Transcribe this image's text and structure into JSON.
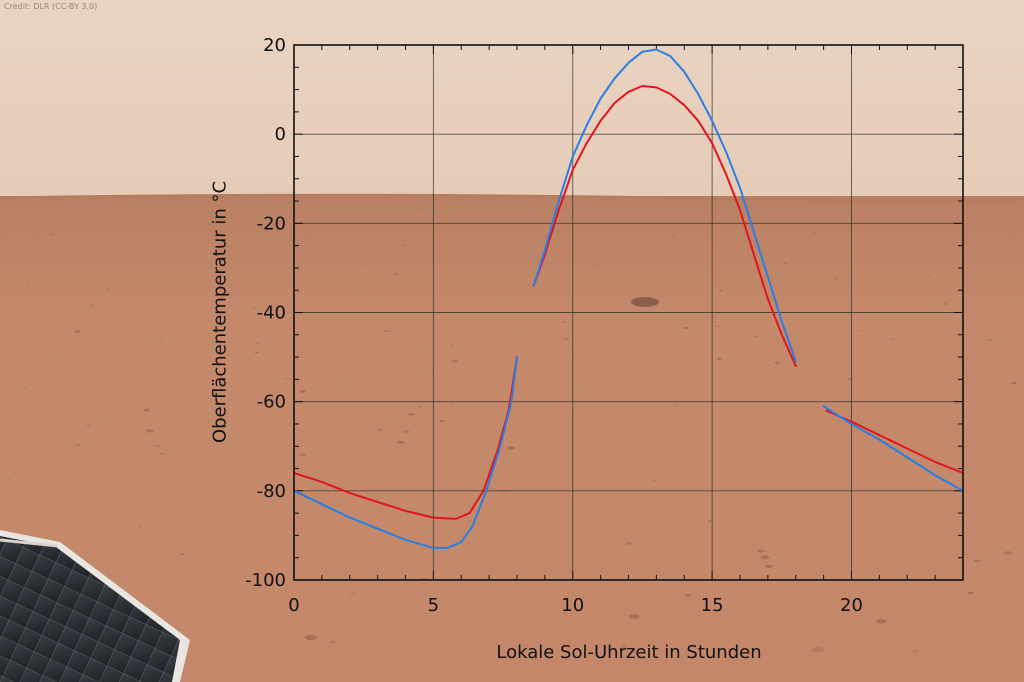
{
  "credit": "Credit: DLR (CC-BY 3.0)",
  "colors": {
    "sky": "#ead3c1",
    "ground": "#c08262",
    "red": "#e0161e",
    "blue": "#2a7ee6"
  },
  "chart_data": {
    "type": "line",
    "xlabel": "Lokale Sol-Uhrzeit in Stunden",
    "ylabel": "Oberflächentemperatur in °C",
    "xlim": [
      0,
      24
    ],
    "ylim": [
      -100,
      20
    ],
    "x_ticks": [
      0,
      5,
      10,
      15,
      20
    ],
    "y_ticks": [
      20,
      0,
      -20,
      -40,
      -60,
      -80,
      -100
    ],
    "grid": true,
    "series": [
      {
        "color": "#e0161e",
        "segments": [
          [
            [
              0,
              -76
            ],
            [
              1,
              -78
            ],
            [
              2,
              -80.5
            ],
            [
              3,
              -82.5
            ],
            [
              4,
              -84.5
            ],
            [
              5,
              -86
            ],
            [
              5.8,
              -86.3
            ],
            [
              6.3,
              -85
            ],
            [
              6.8,
              -80
            ],
            [
              7.3,
              -71
            ],
            [
              7.7,
              -62
            ],
            [
              8.0,
              -50
            ]
          ],
          [
            [
              8.6,
              -34
            ],
            [
              9.0,
              -27
            ],
            [
              9.5,
              -17
            ],
            [
              10,
              -8
            ],
            [
              10.5,
              -2
            ],
            [
              11,
              3
            ],
            [
              11.5,
              7
            ],
            [
              12,
              9.5
            ],
            [
              12.5,
              10.8
            ],
            [
              13,
              10.5
            ],
            [
              13.5,
              9
            ],
            [
              14,
              6.5
            ],
            [
              14.5,
              3
            ],
            [
              15,
              -2
            ],
            [
              15.5,
              -9
            ],
            [
              16,
              -17
            ],
            [
              16.5,
              -27
            ],
            [
              17,
              -37
            ],
            [
              17.5,
              -45
            ],
            [
              18,
              -52
            ]
          ],
          [
            [
              19.1,
              -62
            ],
            [
              20,
              -64.5
            ],
            [
              21,
              -67.5
            ],
            [
              22,
              -70.5
            ],
            [
              23,
              -73.5
            ],
            [
              24,
              -76
            ]
          ]
        ]
      },
      {
        "color": "#2a7ee6",
        "segments": [
          [
            [
              0,
              -80
            ],
            [
              1,
              -83
            ],
            [
              2,
              -86
            ],
            [
              3,
              -88.5
            ],
            [
              4,
              -91
            ],
            [
              5,
              -92.8
            ],
            [
              5.5,
              -92.8
            ],
            [
              6.0,
              -91.5
            ],
            [
              6.4,
              -88
            ],
            [
              6.9,
              -80
            ],
            [
              7.4,
              -70
            ],
            [
              7.8,
              -60
            ],
            [
              8.0,
              -50
            ]
          ],
          [
            [
              8.6,
              -34
            ],
            [
              9.0,
              -26
            ],
            [
              9.5,
              -15
            ],
            [
              10,
              -5
            ],
            [
              10.5,
              2
            ],
            [
              11,
              8
            ],
            [
              11.5,
              12.5
            ],
            [
              12,
              16
            ],
            [
              12.5,
              18.5
            ],
            [
              13,
              19
            ],
            [
              13.5,
              17.5
            ],
            [
              14,
              14
            ],
            [
              14.5,
              9
            ],
            [
              15,
              3
            ],
            [
              15.5,
              -4
            ],
            [
              16,
              -12
            ],
            [
              16.5,
              -22
            ],
            [
              17,
              -32
            ],
            [
              17.5,
              -42
            ],
            [
              18,
              -51
            ]
          ],
          [
            [
              19.0,
              -61
            ],
            [
              20,
              -65
            ],
            [
              21,
              -68.5
            ],
            [
              22,
              -72.5
            ],
            [
              23,
              -76.5
            ],
            [
              24,
              -80
            ]
          ]
        ]
      }
    ]
  }
}
